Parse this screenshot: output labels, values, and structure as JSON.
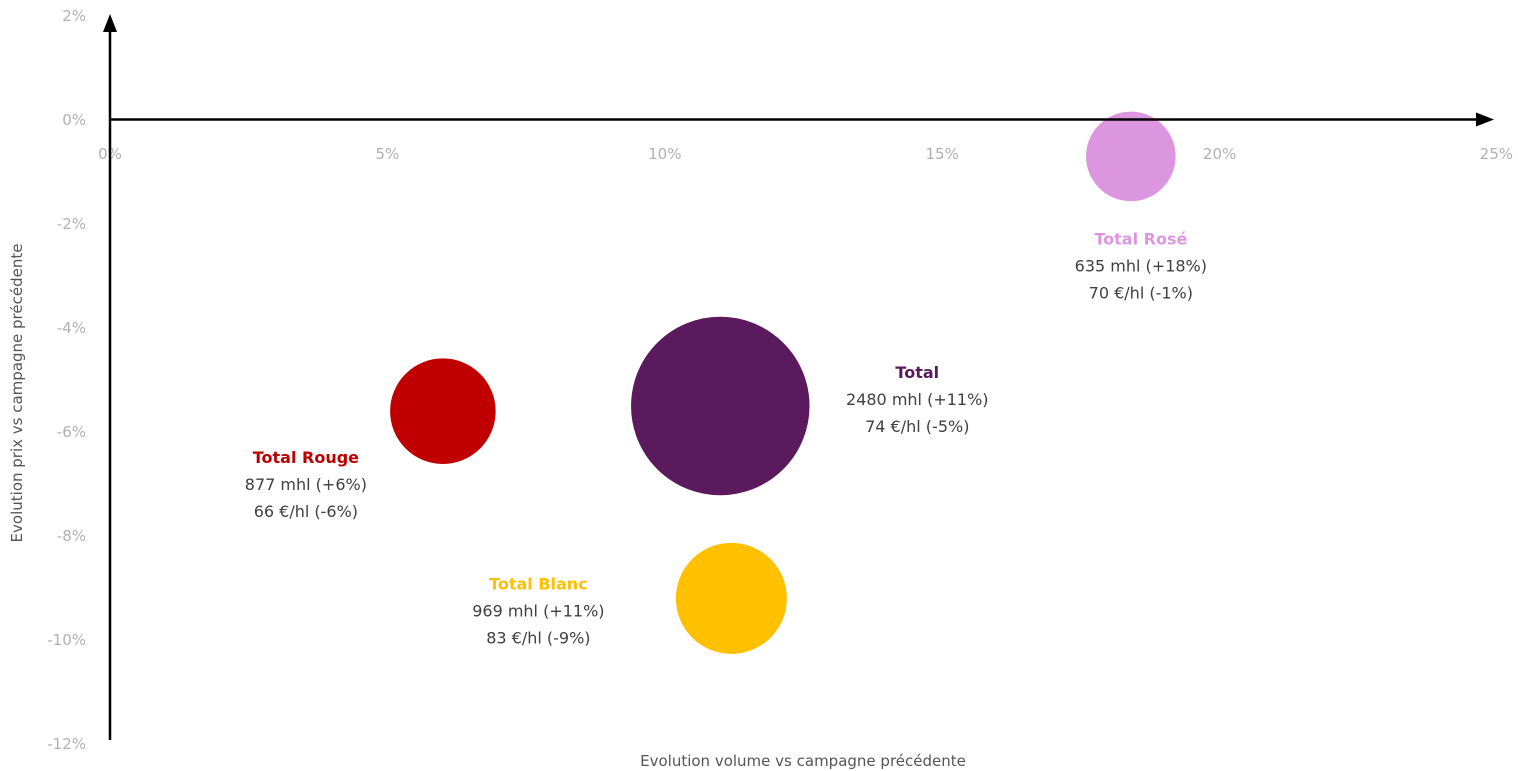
{
  "chart_data": {
    "type": "scatter",
    "subtype": "bubble",
    "xlabel": "Evolution volume vs campagne précédente",
    "ylabel": "Evolution prix vs campagne précédente",
    "xlim": [
      0,
      25
    ],
    "ylim": [
      -12,
      2
    ],
    "x_ticks": [
      "0%",
      "5%",
      "10%",
      "15%",
      "20%",
      "25%"
    ],
    "x_tick_values": [
      0,
      5,
      10,
      15,
      20,
      25
    ],
    "y_ticks": [
      "2%",
      "0%",
      "-2%",
      "-4%",
      "-6%",
      "-8%",
      "-10%",
      "-12%"
    ],
    "y_tick_values": [
      2,
      0,
      -2,
      -4,
      -6,
      -8,
      -10,
      -12
    ],
    "grid": false,
    "points": [
      {
        "name": "Total Rosé",
        "x": 18.4,
        "y": -0.7,
        "size": 635,
        "color": "#dc96e0",
        "label_color": "#dc96e0",
        "line1": "635 mhl (+18%)",
        "line2": "70 €/hl (-1%)"
      },
      {
        "name": "Total",
        "x": 11.0,
        "y": -5.5,
        "size": 2480,
        "color": "#5c1a5e",
        "label_color": "#5c1a5e",
        "line1": "2480 mhl (+11%)",
        "line2": "74 €/hl (-5%)"
      },
      {
        "name": "Total Rouge",
        "x": 6.0,
        "y": -5.6,
        "size": 877,
        "color": "#c00000",
        "label_color": "#c00000",
        "line1": "877 mhl (+6%)",
        "line2": "66 €/hl (-6%)"
      },
      {
        "name": "Total Blanc",
        "x": 11.2,
        "y": -9.2,
        "size": 969,
        "color": "#ffc000",
        "label_color": "#ffc000",
        "line1": "969 mhl (+11%)",
        "line2": "83 €/hl (-9%)"
      }
    ]
  }
}
